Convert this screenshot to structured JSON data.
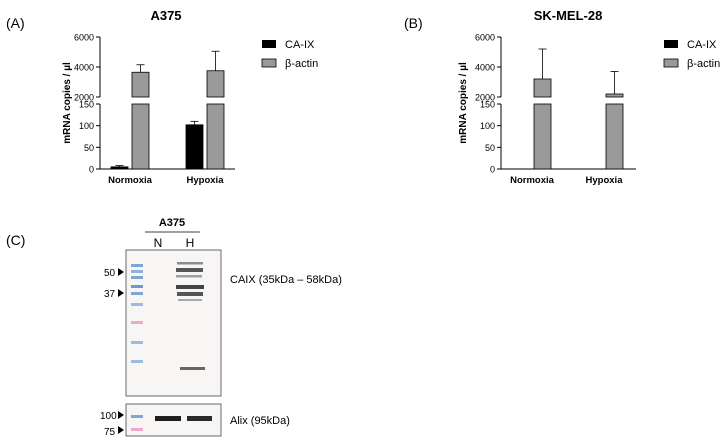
{
  "panels": {
    "a": {
      "letter": "(A)",
      "title": "A375"
    },
    "b": {
      "letter": "(B)",
      "title": "SK-MEL-28"
    },
    "c": {
      "letter": "(C)",
      "sample_header": "A375",
      "lanes": [
        "N",
        "H"
      ]
    }
  },
  "colors": {
    "ca_ix": "#000000",
    "beta_actin": "#9a9a9a"
  },
  "chart_data": [
    {
      "type": "bar",
      "title": "A375",
      "categories": [
        "Normoxia",
        "Hypoxia"
      ],
      "ylabel": "mRNA copies / µl",
      "axis_break": true,
      "upper_segment": {
        "ylim": [
          2000,
          6000
        ],
        "ticks": [
          "6000",
          "4000",
          "2000"
        ]
      },
      "lower_segment": {
        "ylim": [
          0,
          150
        ],
        "ticks": [
          "150",
          "100",
          "50",
          "0"
        ]
      },
      "series": [
        {
          "name": "CA-IX",
          "values": [
            5,
            102
          ],
          "errors": [
            3,
            8
          ]
        },
        {
          "name": "β-actin",
          "values": [
            3650,
            3750
          ],
          "errors": [
            500,
            1300
          ]
        }
      ],
      "legend": "right"
    },
    {
      "type": "bar",
      "title": "SK-MEL-28",
      "categories": [
        "Normoxia",
        "Hypoxia"
      ],
      "ylabel": "mRNA copies / µl",
      "axis_break": true,
      "upper_segment": {
        "ylim": [
          2000,
          6000
        ],
        "ticks": [
          "6000",
          "4000",
          "2000"
        ]
      },
      "lower_segment": {
        "ylim": [
          0,
          150
        ],
        "ticks": [
          "150",
          "100",
          "50",
          "0"
        ]
      },
      "series": [
        {
          "name": "CA-IX",
          "values": [
            0,
            0
          ],
          "errors": [
            0,
            0
          ]
        },
        {
          "name": "β-actin",
          "values": [
            3200,
            2200
          ],
          "errors": [
            2000,
            1500
          ]
        }
      ],
      "legend": "right"
    }
  ],
  "blot": {
    "top_markers": [
      "50",
      "37"
    ],
    "top_label": "CAIX (35kDa – 58kDa)",
    "bottom_markers": [
      "100",
      "75"
    ],
    "bottom_label": "Alix (95kDa)"
  }
}
